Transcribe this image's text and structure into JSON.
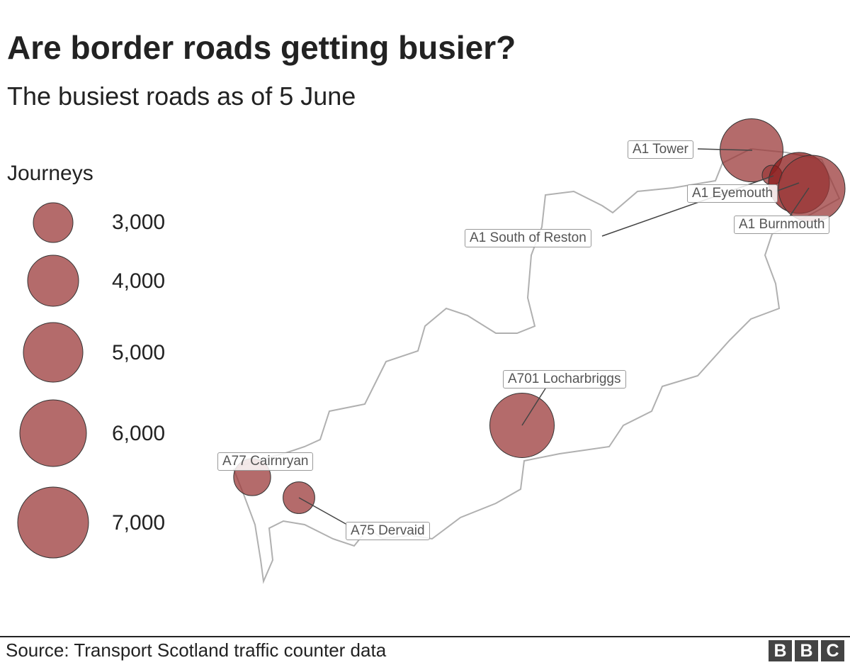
{
  "title": "Are border roads getting busier?",
  "subtitle": "The busiest roads as of 5 June",
  "legend": {
    "title": "Journeys",
    "items": [
      {
        "label": "3,000",
        "value": 3000
      },
      {
        "label": "4,000",
        "value": 4000
      },
      {
        "label": "5,000",
        "value": 5000
      },
      {
        "label": "6,000",
        "value": 6000
      },
      {
        "label": "7,000",
        "value": 7000
      }
    ]
  },
  "colors": {
    "bubble": "#9b3a3a",
    "bubble_dark": "#8b1a1a",
    "outline": "#b0b0b0"
  },
  "chart_data": {
    "type": "bubble-map",
    "size_variable": "Journeys",
    "points": [
      {
        "name": "A1 Tower",
        "value": 5500
      },
      {
        "name": "A1 South of Reston",
        "value": 1500
      },
      {
        "name": "A1 Eyemouth",
        "value": 5200
      },
      {
        "name": "A1 Burnmouth",
        "value": 6000
      },
      {
        "name": "A701 Locharbriggs",
        "value": 5700
      },
      {
        "name": "A77 Cairnryan",
        "value": 2800
      },
      {
        "name": "A75 Dervaid",
        "value": 2400
      }
    ]
  },
  "footer": {
    "source": "Source: Transport Scotland traffic counter data",
    "logo": "BBC",
    "logo_letters": [
      "B",
      "B",
      "C"
    ]
  }
}
